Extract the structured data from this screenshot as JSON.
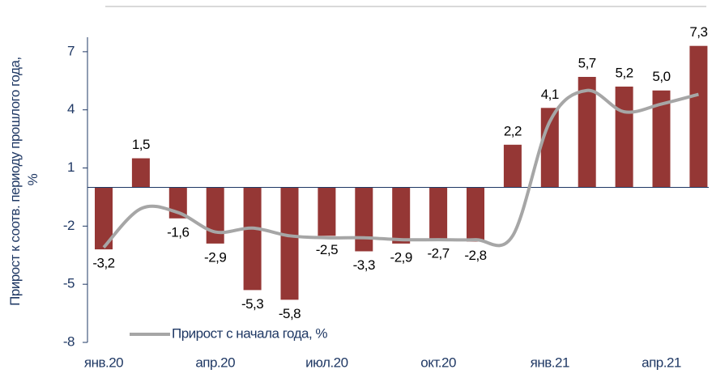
{
  "chart_data": {
    "type": "bar_line",
    "y_label": [
      "Прирост к соотв. периоду прошлого года,",
      "%"
    ],
    "categories": [
      "янв.20",
      null,
      null,
      "апр.20",
      null,
      null,
      "июл.20",
      null,
      null,
      "окт.20",
      null,
      null,
      "янв.21",
      null,
      null,
      "апр.21",
      null
    ],
    "ylim": [
      -8,
      9
    ],
    "yticks": [
      -8,
      -5,
      -2,
      1,
      4,
      7
    ],
    "series": [
      {
        "type": "bar",
        "color": "#953735",
        "values": [
          -3.2,
          1.5,
          -1.6,
          -2.9,
          -5.3,
          -5.8,
          -2.5,
          -3.3,
          -2.9,
          -2.7,
          -2.8,
          2.2,
          4.1,
          5.7,
          5.2,
          5.0,
          7.3
        ],
        "value_labels": [
          "-3,2",
          "1,5",
          "-1,6",
          "-2,9",
          "-5,3",
          "-5,8",
          "-2,5",
          "-3,3",
          "-2,9",
          "-2,7",
          "-2,8",
          "2,2",
          "4,1",
          "5,7",
          "5,2",
          "5,0",
          "7,3"
        ]
      },
      {
        "type": "line",
        "name": "Прирост с начала года, %",
        "color": "#a6a6a6",
        "values": [
          -3.1,
          -1.1,
          -1.3,
          -2.3,
          -2.1,
          -2.5,
          -2.6,
          -2.6,
          -2.7,
          -2.7,
          -2.7,
          -2.5,
          3.4,
          5.0,
          3.9,
          4.3,
          4.8
        ]
      }
    ]
  }
}
